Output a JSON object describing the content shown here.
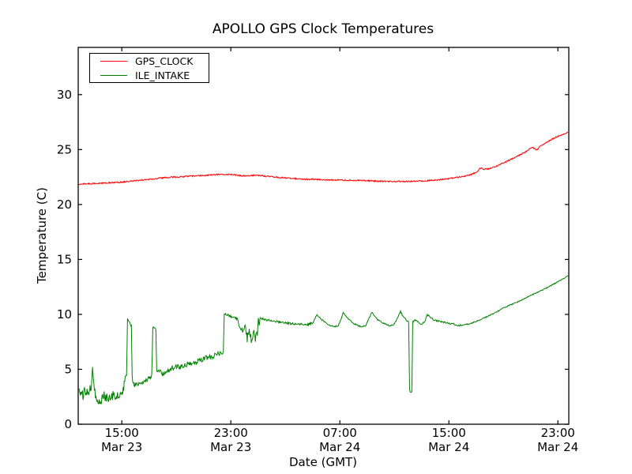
{
  "figure": {
    "background": "#ffffff",
    "frame_color": "#000000"
  },
  "chart_data": {
    "type": "line",
    "title": "APOLLO GPS Clock Temperatures",
    "xlabel": "Date (GMT)",
    "ylabel": "Temperature (C)",
    "grid": false,
    "xlim_hours": [
      11.8,
      47.8
    ],
    "ylim": [
      0,
      34.3
    ],
    "y_ticks": [
      0,
      5,
      10,
      15,
      20,
      25,
      30
    ],
    "x_ticks": [
      {
        "t": 15,
        "time": "15:00",
        "date": "Mar 23"
      },
      {
        "t": 23,
        "time": "23:00",
        "date": "Mar 23"
      },
      {
        "t": 31,
        "time": "07:00",
        "date": "Mar 24"
      },
      {
        "t": 39,
        "time": "15:00",
        "date": "Mar 24"
      },
      {
        "t": 47,
        "time": "23:00",
        "date": "Mar 24"
      }
    ],
    "legend": {
      "position": "upper-left",
      "entries": [
        {
          "label": "GPS_CLOCK",
          "color": "#ff0000"
        },
        {
          "label": "ILE_INTAKE",
          "color": "#008000"
        }
      ]
    },
    "series": [
      {
        "name": "GPS_CLOCK",
        "color": "#ff0000",
        "noise": [
          [
            11.8,
            47.8,
            0.06
          ]
        ],
        "points": [
          [
            11.8,
            21.85
          ],
          [
            12.3,
            21.88
          ],
          [
            12.8,
            21.9
          ],
          [
            13.3,
            21.92
          ],
          [
            13.8,
            21.97
          ],
          [
            14.3,
            22.0
          ],
          [
            14.8,
            22.02
          ],
          [
            15.3,
            22.08
          ],
          [
            15.8,
            22.15
          ],
          [
            16.3,
            22.2
          ],
          [
            16.8,
            22.28
          ],
          [
            17.3,
            22.33
          ],
          [
            17.8,
            22.4
          ],
          [
            18.3,
            22.45
          ],
          [
            18.8,
            22.5
          ],
          [
            19.3,
            22.52
          ],
          [
            19.8,
            22.57
          ],
          [
            20.3,
            22.6
          ],
          [
            20.8,
            22.63
          ],
          [
            21.3,
            22.67
          ],
          [
            21.8,
            22.7
          ],
          [
            22.3,
            22.73
          ],
          [
            22.8,
            22.75
          ],
          [
            23.2,
            22.72
          ],
          [
            23.6,
            22.65
          ],
          [
            24.0,
            22.6
          ],
          [
            24.4,
            22.63
          ],
          [
            24.8,
            22.68
          ],
          [
            25.1,
            22.65
          ],
          [
            25.5,
            22.58
          ],
          [
            26.0,
            22.52
          ],
          [
            26.5,
            22.47
          ],
          [
            27.0,
            22.42
          ],
          [
            27.5,
            22.38
          ],
          [
            28.0,
            22.33
          ],
          [
            28.5,
            22.3
          ],
          [
            29.0,
            22.3
          ],
          [
            29.5,
            22.27
          ],
          [
            30.0,
            22.25
          ],
          [
            30.5,
            22.23
          ],
          [
            31.0,
            22.22
          ],
          [
            31.5,
            22.2
          ],
          [
            32.0,
            22.2
          ],
          [
            32.5,
            22.18
          ],
          [
            33.0,
            22.16
          ],
          [
            33.5,
            22.14
          ],
          [
            34.0,
            22.12
          ],
          [
            34.5,
            22.1
          ],
          [
            35.0,
            22.1
          ],
          [
            35.5,
            22.1
          ],
          [
            36.0,
            22.1
          ],
          [
            36.5,
            22.12
          ],
          [
            37.0,
            22.15
          ],
          [
            37.5,
            22.18
          ],
          [
            38.0,
            22.22
          ],
          [
            38.5,
            22.28
          ],
          [
            39.0,
            22.35
          ],
          [
            39.5,
            22.45
          ],
          [
            40.0,
            22.55
          ],
          [
            40.5,
            22.68
          ],
          [
            41.0,
            22.9
          ],
          [
            41.35,
            23.35
          ],
          [
            41.55,
            23.2
          ],
          [
            41.8,
            23.22
          ],
          [
            42.1,
            23.32
          ],
          [
            42.5,
            23.5
          ],
          [
            42.9,
            23.72
          ],
          [
            43.3,
            23.95
          ],
          [
            43.7,
            24.2
          ],
          [
            44.1,
            24.45
          ],
          [
            44.5,
            24.7
          ],
          [
            44.8,
            24.95
          ],
          [
            45.1,
            25.2
          ],
          [
            45.45,
            24.95
          ],
          [
            45.7,
            25.3
          ],
          [
            46.0,
            25.55
          ],
          [
            46.3,
            25.75
          ],
          [
            46.6,
            25.95
          ],
          [
            46.9,
            26.15
          ],
          [
            47.2,
            26.3
          ],
          [
            47.5,
            26.45
          ],
          [
            47.8,
            26.6
          ]
        ]
      },
      {
        "name": "ILE_INTAKE",
        "color": "#008000",
        "noise": [
          [
            11.8,
            15.35,
            0.45
          ],
          [
            15.42,
            15.7,
            0.12
          ],
          [
            15.76,
            17.2,
            0.22
          ],
          [
            17.27,
            17.5,
            0.08
          ],
          [
            17.56,
            22.45,
            0.22
          ],
          [
            22.52,
            23.5,
            0.1
          ],
          [
            23.62,
            24.95,
            0.4
          ],
          [
            25.02,
            29.0,
            0.1
          ],
          [
            29.0,
            40.0,
            0.07
          ],
          [
            40.0,
            47.8,
            0.05
          ]
        ],
        "points": [
          [
            11.8,
            3.3
          ],
          [
            12.0,
            2.8
          ],
          [
            12.15,
            2.5
          ],
          [
            12.3,
            3.1
          ],
          [
            12.45,
            2.8
          ],
          [
            12.6,
            3.0
          ],
          [
            12.75,
            3.3
          ],
          [
            12.85,
            5.6
          ],
          [
            12.95,
            3.3
          ],
          [
            13.1,
            2.4
          ],
          [
            13.3,
            1.9
          ],
          [
            13.5,
            2.3
          ],
          [
            13.7,
            2.6
          ],
          [
            13.9,
            2.4
          ],
          [
            14.1,
            2.5
          ],
          [
            14.35,
            2.6
          ],
          [
            14.6,
            2.5
          ],
          [
            14.85,
            2.8
          ],
          [
            15.1,
            3.1
          ],
          [
            15.25,
            3.9
          ],
          [
            15.35,
            4.2
          ],
          [
            15.42,
            9.6
          ],
          [
            15.55,
            9.3
          ],
          [
            15.7,
            8.9
          ],
          [
            15.76,
            4.2
          ],
          [
            15.9,
            3.6
          ],
          [
            16.1,
            3.7
          ],
          [
            16.3,
            3.6
          ],
          [
            16.5,
            3.8
          ],
          [
            16.7,
            4.0
          ],
          [
            16.9,
            4.1
          ],
          [
            17.05,
            4.3
          ],
          [
            17.2,
            4.5
          ],
          [
            17.27,
            8.85
          ],
          [
            17.4,
            8.75
          ],
          [
            17.5,
            8.6
          ],
          [
            17.56,
            4.7
          ],
          [
            17.7,
            4.8
          ],
          [
            17.9,
            4.7
          ],
          [
            18.1,
            4.6
          ],
          [
            18.3,
            4.8
          ],
          [
            18.5,
            5.0
          ],
          [
            18.7,
            5.1
          ],
          [
            18.9,
            5.2
          ],
          [
            19.1,
            5.3
          ],
          [
            19.3,
            5.2
          ],
          [
            19.5,
            5.3
          ],
          [
            19.7,
            5.4
          ],
          [
            19.9,
            5.5
          ],
          [
            20.1,
            5.6
          ],
          [
            20.3,
            5.6
          ],
          [
            20.5,
            5.7
          ],
          [
            20.7,
            5.8
          ],
          [
            20.9,
            5.9
          ],
          [
            21.1,
            6.0
          ],
          [
            21.3,
            6.1
          ],
          [
            21.5,
            6.1
          ],
          [
            21.7,
            6.2
          ],
          [
            21.9,
            6.3
          ],
          [
            22.1,
            6.4
          ],
          [
            22.3,
            6.5
          ],
          [
            22.45,
            6.6
          ],
          [
            22.52,
            10.1
          ],
          [
            22.7,
            10.0
          ],
          [
            22.9,
            9.85
          ],
          [
            23.1,
            9.75
          ],
          [
            23.3,
            9.65
          ],
          [
            23.5,
            9.6
          ],
          [
            23.62,
            8.8
          ],
          [
            23.75,
            8.9
          ],
          [
            23.9,
            8.2
          ],
          [
            24.05,
            8.7
          ],
          [
            24.2,
            7.8
          ],
          [
            24.35,
            8.5
          ],
          [
            24.5,
            7.7
          ],
          [
            24.65,
            8.3
          ],
          [
            24.8,
            7.9
          ],
          [
            24.95,
            8.1
          ],
          [
            25.02,
            9.75
          ],
          [
            25.08,
            8.9
          ],
          [
            25.14,
            9.65
          ],
          [
            25.3,
            9.6
          ],
          [
            25.5,
            9.5
          ],
          [
            25.8,
            9.45
          ],
          [
            26.0,
            9.4
          ],
          [
            26.3,
            9.35
          ],
          [
            26.6,
            9.3
          ],
          [
            26.9,
            9.25
          ],
          [
            27.2,
            9.2
          ],
          [
            27.5,
            9.15
          ],
          [
            27.8,
            9.1
          ],
          [
            28.1,
            9.1
          ],
          [
            28.4,
            9.05
          ],
          [
            28.7,
            9.1
          ],
          [
            29.0,
            9.2
          ],
          [
            29.2,
            9.7
          ],
          [
            29.32,
            10.0
          ],
          [
            29.45,
            9.8
          ],
          [
            29.6,
            9.6
          ],
          [
            29.8,
            9.4
          ],
          [
            30.0,
            9.2
          ],
          [
            30.3,
            9.0
          ],
          [
            30.6,
            8.9
          ],
          [
            30.9,
            9.0
          ],
          [
            31.1,
            9.6
          ],
          [
            31.25,
            10.2
          ],
          [
            31.4,
            9.9
          ],
          [
            31.6,
            9.6
          ],
          [
            31.8,
            9.4
          ],
          [
            32.0,
            9.2
          ],
          [
            32.3,
            9.0
          ],
          [
            32.6,
            8.85
          ],
          [
            32.9,
            9.0
          ],
          [
            33.15,
            9.7
          ],
          [
            33.35,
            10.2
          ],
          [
            33.5,
            9.9
          ],
          [
            33.7,
            9.6
          ],
          [
            33.9,
            9.4
          ],
          [
            34.1,
            9.25
          ],
          [
            34.4,
            9.1
          ],
          [
            34.7,
            8.95
          ],
          [
            35.0,
            9.1
          ],
          [
            35.2,
            9.6
          ],
          [
            35.45,
            10.25
          ],
          [
            35.6,
            9.9
          ],
          [
            35.8,
            9.6
          ],
          [
            35.95,
            9.4
          ],
          [
            36.05,
            9.3
          ],
          [
            36.12,
            3.1
          ],
          [
            36.2,
            2.9
          ],
          [
            36.28,
            3.0
          ],
          [
            36.35,
            9.3
          ],
          [
            36.5,
            9.5
          ],
          [
            36.65,
            9.4
          ],
          [
            36.8,
            9.25
          ],
          [
            37.0,
            9.1
          ],
          [
            37.2,
            9.3
          ],
          [
            37.42,
            9.95
          ],
          [
            37.55,
            9.85
          ],
          [
            37.7,
            9.7
          ],
          [
            37.9,
            9.5
          ],
          [
            38.2,
            9.4
          ],
          [
            38.5,
            9.3
          ],
          [
            38.8,
            9.25
          ],
          [
            39.1,
            9.15
          ],
          [
            39.4,
            9.1
          ],
          [
            39.7,
            9.0
          ],
          [
            40.0,
            9.02
          ],
          [
            40.4,
            9.1
          ],
          [
            40.9,
            9.3
          ],
          [
            41.4,
            9.55
          ],
          [
            41.9,
            9.85
          ],
          [
            42.4,
            10.15
          ],
          [
            42.9,
            10.5
          ],
          [
            43.4,
            10.8
          ],
          [
            43.9,
            11.05
          ],
          [
            44.4,
            11.35
          ],
          [
            44.9,
            11.65
          ],
          [
            45.4,
            11.95
          ],
          [
            45.9,
            12.25
          ],
          [
            46.4,
            12.55
          ],
          [
            46.9,
            12.9
          ],
          [
            47.35,
            13.2
          ],
          [
            47.8,
            13.6
          ]
        ]
      }
    ]
  }
}
